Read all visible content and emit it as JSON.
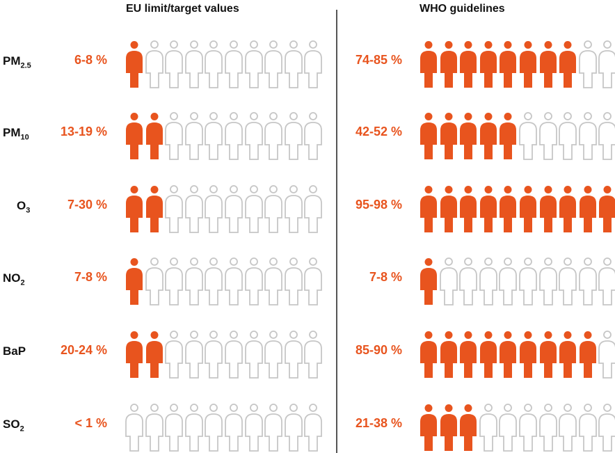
{
  "headers": {
    "eu": "EU limit/target values",
    "who": "WHO guidelines"
  },
  "colors": {
    "filled": "#E8541E",
    "empty": "#C6C6C6",
    "text": "#111111"
  },
  "chart_data": {
    "type": "pictogram",
    "icons_per_row": 10,
    "series": [
      "EU limit/target values",
      "WHO guidelines"
    ],
    "rows": [
      {
        "pollutant": "PM",
        "sub": "2.5",
        "eu": {
          "label": "6-8 %",
          "filled": 1
        },
        "who": {
          "label": "74-85 %",
          "filled": 8
        }
      },
      {
        "pollutant": "PM",
        "sub": "10",
        "eu": {
          "label": "13-19 %",
          "filled": 2
        },
        "who": {
          "label": "42-52 %",
          "filled": 5
        }
      },
      {
        "pollutant": "O",
        "sub": "3",
        "eu": {
          "label": "7-30 %",
          "filled": 2
        },
        "who": {
          "label": "95-98 %",
          "filled": 10
        }
      },
      {
        "pollutant": "NO",
        "sub": "2",
        "eu": {
          "label": "7-8 %",
          "filled": 1
        },
        "who": {
          "label": "7-8 %",
          "filled": 1
        }
      },
      {
        "pollutant": "BaP",
        "sub": "",
        "eu": {
          "label": "20-24 %",
          "filled": 2
        },
        "who": {
          "label": "85-90 %",
          "filled": 9
        }
      },
      {
        "pollutant": "SO",
        "sub": "2",
        "eu": {
          "label": "< 1 %",
          "filled": 0
        },
        "who": {
          "label": "21-38 %",
          "filled": 3
        }
      }
    ]
  }
}
